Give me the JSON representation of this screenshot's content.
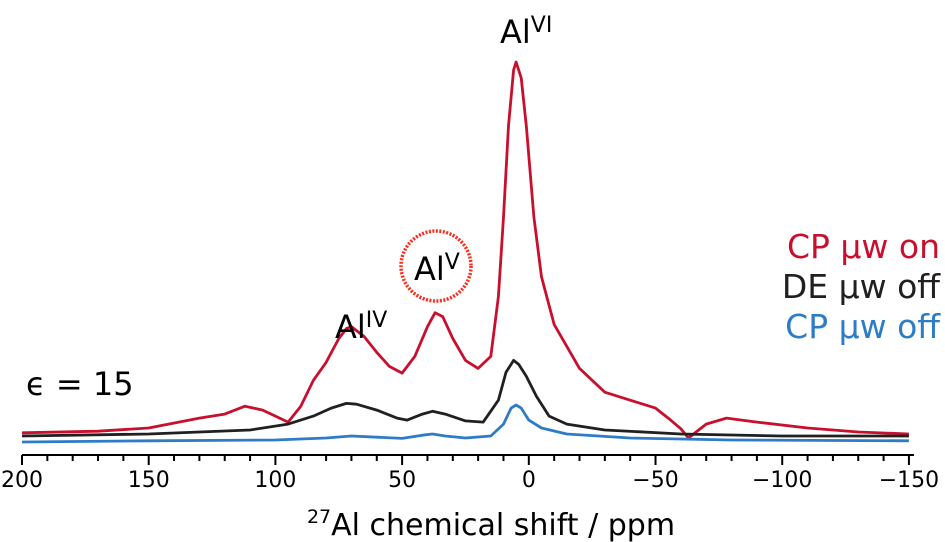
{
  "chart_data": {
    "type": "line",
    "title": "",
    "xlabel": {
      "sup": "27",
      "text": "Al chemical shift / ppm"
    },
    "ylabel": "",
    "xlim": [
      200,
      -152
    ],
    "xdirection": "reversed",
    "xticks": [
      200,
      150,
      100,
      50,
      0,
      -50,
      -100,
      -150
    ],
    "xtick_labels": [
      "200",
      "150",
      "100",
      "50",
      "0",
      "−50",
      "−100",
      "−150"
    ],
    "grid": false,
    "legend_position": "right",
    "series": [
      {
        "name": "CP µw on",
        "color": "#c8102e",
        "points": [
          [
            200,
            0.008
          ],
          [
            170,
            0.012
          ],
          [
            150,
            0.02
          ],
          [
            130,
            0.045
          ],
          [
            120,
            0.055
          ],
          [
            112,
            0.075
          ],
          [
            105,
            0.065
          ],
          [
            95,
            0.035
          ],
          [
            90,
            0.075
          ],
          [
            85,
            0.14
          ],
          [
            80,
            0.185
          ],
          [
            75,
            0.245
          ],
          [
            72,
            0.27
          ],
          [
            70,
            0.275
          ],
          [
            65,
            0.25
          ],
          [
            60,
            0.21
          ],
          [
            55,
            0.175
          ],
          [
            50,
            0.158
          ],
          [
            45,
            0.2
          ],
          [
            40,
            0.275
          ],
          [
            37,
            0.31
          ],
          [
            34,
            0.3
          ],
          [
            30,
            0.245
          ],
          [
            25,
            0.19
          ],
          [
            20,
            0.17
          ],
          [
            15,
            0.2
          ],
          [
            12,
            0.35
          ],
          [
            10,
            0.55
          ],
          [
            8,
            0.78
          ],
          [
            6,
            0.92
          ],
          [
            5,
            0.94
          ],
          [
            3,
            0.9
          ],
          [
            1,
            0.78
          ],
          [
            -2,
            0.55
          ],
          [
            -5,
            0.4
          ],
          [
            -10,
            0.28
          ],
          [
            -20,
            0.17
          ],
          [
            -30,
            0.11
          ],
          [
            -40,
            0.09
          ],
          [
            -50,
            0.07
          ],
          [
            -55,
            0.045
          ],
          [
            -60,
            0.018
          ],
          [
            -63,
            -0.005
          ],
          [
            -66,
            0.01
          ],
          [
            -70,
            0.03
          ],
          [
            -78,
            0.045
          ],
          [
            -90,
            0.035
          ],
          [
            -110,
            0.02
          ],
          [
            -130,
            0.01
          ],
          [
            -150,
            0.005
          ]
        ]
      },
      {
        "name": "DE µw off",
        "color": "#202020",
        "points": [
          [
            200,
            0.0
          ],
          [
            150,
            0.005
          ],
          [
            110,
            0.015
          ],
          [
            95,
            0.03
          ],
          [
            85,
            0.05
          ],
          [
            78,
            0.07
          ],
          [
            72,
            0.082
          ],
          [
            68,
            0.08
          ],
          [
            60,
            0.065
          ],
          [
            52,
            0.045
          ],
          [
            48,
            0.04
          ],
          [
            42,
            0.055
          ],
          [
            38,
            0.062
          ],
          [
            33,
            0.055
          ],
          [
            25,
            0.038
          ],
          [
            18,
            0.035
          ],
          [
            12,
            0.09
          ],
          [
            9,
            0.16
          ],
          [
            6,
            0.19
          ],
          [
            4,
            0.18
          ],
          [
            1,
            0.15
          ],
          [
            -3,
            0.1
          ],
          [
            -8,
            0.05
          ],
          [
            -15,
            0.03
          ],
          [
            -30,
            0.015
          ],
          [
            -60,
            0.005
          ],
          [
            -100,
            0.0
          ],
          [
            -150,
            0.0
          ]
        ]
      },
      {
        "name": "CP µw off",
        "color": "#2e7cc8",
        "points": [
          [
            200,
            -0.015
          ],
          [
            150,
            -0.012
          ],
          [
            100,
            -0.01
          ],
          [
            80,
            -0.005
          ],
          [
            70,
            0.0
          ],
          [
            60,
            -0.003
          ],
          [
            50,
            -0.006
          ],
          [
            42,
            0.002
          ],
          [
            38,
            0.005
          ],
          [
            33,
            0.0
          ],
          [
            25,
            -0.005
          ],
          [
            15,
            0.0
          ],
          [
            10,
            0.03
          ],
          [
            7,
            0.07
          ],
          [
            5,
            0.078
          ],
          [
            3,
            0.07
          ],
          [
            0,
            0.04
          ],
          [
            -5,
            0.02
          ],
          [
            -15,
            0.005
          ],
          [
            -40,
            -0.005
          ],
          [
            -80,
            -0.01
          ],
          [
            -150,
            -0.012
          ]
        ]
      }
    ],
    "annotations": {
      "peak_iv": {
        "base": "Al",
        "sup": "IV"
      },
      "peak_v": {
        "base": "Al",
        "sup": "V"
      },
      "peak_vi": {
        "base": "Al",
        "sup": "VI"
      },
      "epsilon": "ϵ = 15"
    },
    "highlight_circle_color": "#ff2a1a"
  }
}
